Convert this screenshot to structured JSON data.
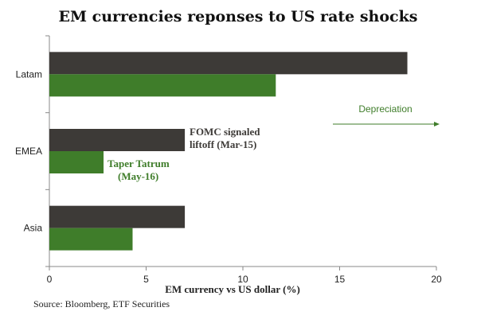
{
  "colors": {
    "series_fomc": "#3d3a37",
    "series_taper": "#3f7d2a",
    "axis": "#888888",
    "depreciation": "#3f7d2a"
  },
  "chart_data": {
    "type": "bar",
    "orientation": "horizontal",
    "title": "EM currencies reponses to US rate shocks",
    "xlabel": "EM currency vs US dollar (%)",
    "ylabel": "",
    "xlim": [
      0,
      20
    ],
    "xticks": [
      0,
      5,
      10,
      15,
      20
    ],
    "tick_labels": [
      "0",
      "5",
      "10",
      "15",
      "20"
    ],
    "categories": [
      "Latam",
      "EMEA",
      "Asia"
    ],
    "series": [
      {
        "name": "FOMC signaled liftoff (Mar-15)",
        "values": [
          18.5,
          7.0,
          7.0
        ]
      },
      {
        "name": "Taper Tatrum (May-16)",
        "values": [
          11.7,
          2.8,
          4.3
        ]
      }
    ],
    "annotations": {
      "fomc_line1": "FOMC signaled",
      "fomc_line2": "liftoff (Mar-15)",
      "taper_line1": "Taper Tatrum",
      "taper_line2": "(May-16)",
      "depreciation": "Depreciation"
    },
    "legend": "none",
    "grid": false
  },
  "source": "Source: Bloomberg, ETF Securities"
}
